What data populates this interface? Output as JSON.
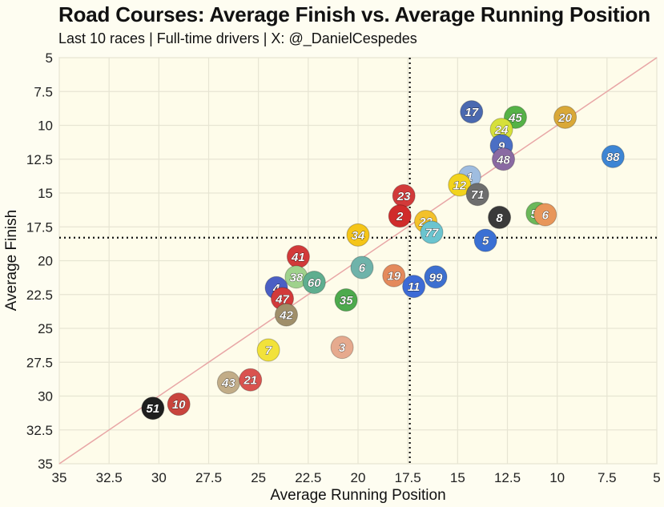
{
  "title": "Road Courses: Average Finish vs. Average Running Position",
  "subtitle": "Last 10 races | Full-time drivers | X: @_DanielCespedes",
  "chart_data": {
    "type": "scatter",
    "xlabel": "Average Running Position",
    "ylabel": "Average Finish",
    "xlim": [
      35,
      5
    ],
    "ylim": [
      35,
      5
    ],
    "x_reversed": true,
    "y_reversed": true,
    "grid": true,
    "x_ticks": [
      "35",
      "32.5",
      "30",
      "27.5",
      "25",
      "22.5",
      "20",
      "17.5",
      "15",
      "12.5",
      "10",
      "7.5",
      "5"
    ],
    "y_ticks": [
      "5",
      "7.5",
      "10",
      "12.5",
      "15",
      "17.5",
      "20",
      "22.5",
      "25",
      "27.5",
      "30",
      "32.5",
      "35"
    ],
    "reference_lines": {
      "diagonal": "y = x",
      "vertical_x": 17.4,
      "horizontal_y": 18.3
    },
    "points": [
      {
        "label": "17",
        "x": 14.3,
        "y": 9.0,
        "color": "#4a69b0"
      },
      {
        "label": "45",
        "x": 12.1,
        "y": 9.4,
        "color": "#55b247"
      },
      {
        "label": "20",
        "x": 9.6,
        "y": 9.4,
        "color": "#d9a838"
      },
      {
        "label": "24",
        "x": 12.8,
        "y": 10.3,
        "color": "#d6e03a"
      },
      {
        "label": "9",
        "x": 12.8,
        "y": 11.5,
        "color": "#4b6fc4"
      },
      {
        "label": "48",
        "x": 12.7,
        "y": 12.5,
        "color": "#8a6aa3"
      },
      {
        "label": "88",
        "x": 7.2,
        "y": 12.3,
        "color": "#3d85d4"
      },
      {
        "label": "1",
        "x": 14.4,
        "y": 13.8,
        "color": "#9fbde0"
      },
      {
        "label": "12",
        "x": 14.9,
        "y": 14.4,
        "color": "#f2d31c"
      },
      {
        "label": "71",
        "x": 14.0,
        "y": 15.1,
        "color": "#6e6e6e"
      },
      {
        "label": "23",
        "x": 17.7,
        "y": 15.2,
        "color": "#d23a3a"
      },
      {
        "label": "2",
        "x": 17.9,
        "y": 16.7,
        "color": "#d02b2b"
      },
      {
        "label": "22",
        "x": 16.6,
        "y": 17.1,
        "color": "#f3c12a"
      },
      {
        "label": "77",
        "x": 16.3,
        "y": 17.9,
        "color": "#6bc4cf"
      },
      {
        "label": "8",
        "x": 12.9,
        "y": 16.8,
        "color": "#3a3a3a"
      },
      {
        "label": "54",
        "x": 11.0,
        "y": 16.5,
        "color": "#6cb85a"
      },
      {
        "label": "6",
        "x": 10.6,
        "y": 16.6,
        "color": "#e8965a"
      },
      {
        "label": "5",
        "x": 13.6,
        "y": 18.5,
        "color": "#3a70d4"
      },
      {
        "label": "34",
        "x": 20.0,
        "y": 18.1,
        "color": "#f5c518"
      },
      {
        "label": "41",
        "x": 23.0,
        "y": 19.7,
        "color": "#d23a3a"
      },
      {
        "label": "6",
        "x": 19.8,
        "y": 20.5,
        "color": "#6fb3aa"
      },
      {
        "label": "38",
        "x": 23.1,
        "y": 21.2,
        "color": "#9fd28c"
      },
      {
        "label": "60",
        "x": 22.2,
        "y": 21.6,
        "color": "#5fae8f"
      },
      {
        "label": "4",
        "x": 24.1,
        "y": 22.0,
        "color": "#4b5fc4"
      },
      {
        "label": "47",
        "x": 23.8,
        "y": 22.8,
        "color": "#d23a3a"
      },
      {
        "label": "19",
        "x": 18.2,
        "y": 21.1,
        "color": "#e48a5c"
      },
      {
        "label": "11",
        "x": 17.2,
        "y": 21.9,
        "color": "#3d6bd6"
      },
      {
        "label": "99",
        "x": 16.1,
        "y": 21.2,
        "color": "#3d70d0"
      },
      {
        "label": "35",
        "x": 20.6,
        "y": 22.9,
        "color": "#4daa4d"
      },
      {
        "label": "42",
        "x": 23.6,
        "y": 24.0,
        "color": "#a08f6a"
      },
      {
        "label": "7",
        "x": 24.5,
        "y": 26.6,
        "color": "#f2e23a"
      },
      {
        "label": "3",
        "x": 20.8,
        "y": 26.4,
        "color": "#e6aa8e"
      },
      {
        "label": "43",
        "x": 26.5,
        "y": 29.0,
        "color": "#c2ad88"
      },
      {
        "label": "21",
        "x": 25.4,
        "y": 28.8,
        "color": "#d9534f"
      },
      {
        "label": "51",
        "x": 30.3,
        "y": 30.9,
        "color": "#1f1f1f"
      },
      {
        "label": "10",
        "x": 29.0,
        "y": 30.6,
        "color": "#c9443d"
      }
    ]
  }
}
